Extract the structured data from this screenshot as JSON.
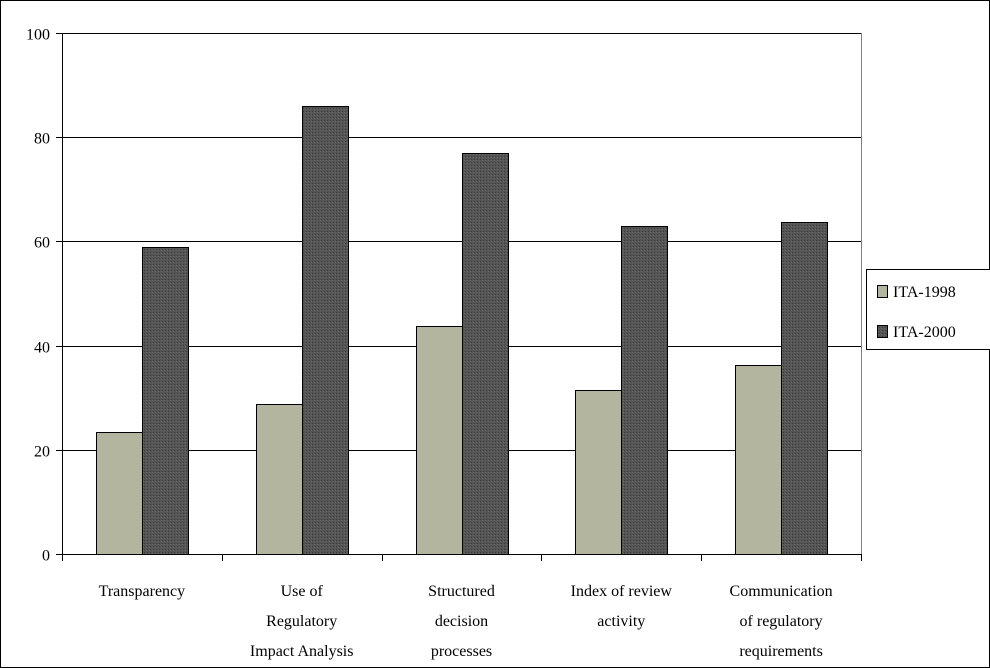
{
  "chart_data": {
    "type": "bar",
    "categories": [
      [
        "Transparency"
      ],
      [
        "Use of",
        "Regulatory",
        "Impact Analysis"
      ],
      [
        "Structured",
        "decision",
        "processes"
      ],
      [
        "Index of review",
        "activity"
      ],
      [
        "Communication",
        "of regulatory",
        "requirements"
      ]
    ],
    "series": [
      {
        "name": "ITA-1998",
        "values": [
          23.5,
          28.7,
          43.7,
          31.5,
          36.3
        ],
        "color": "#b3b59f"
      },
      {
        "name": "ITA-2000",
        "values": [
          59.0,
          86.0,
          77.0,
          63.0,
          63.8
        ],
        "color": "#555555"
      }
    ],
    "ylim": [
      0,
      100
    ],
    "yticks": [
      "0",
      "20",
      "40",
      "60",
      "80",
      "100"
    ],
    "grid": true,
    "legend": "right",
    "title": "",
    "xlabel": "",
    "ylabel": ""
  }
}
